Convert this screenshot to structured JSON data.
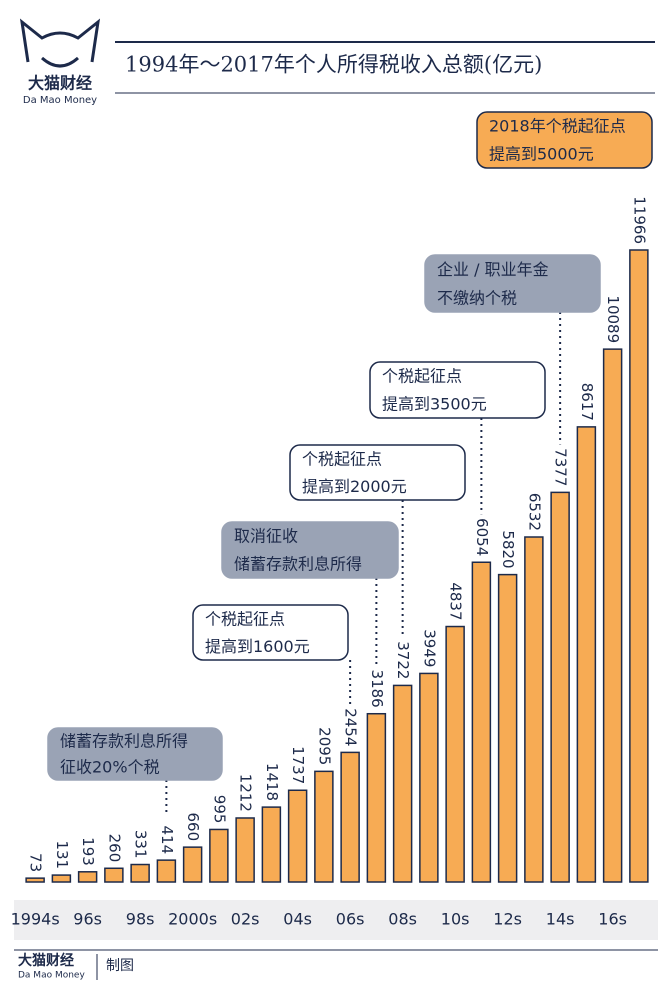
{
  "brand": {
    "name": "大猫财经",
    "sub": "Da Mao Money"
  },
  "footer": {
    "name": "大猫财经",
    "sub": "Da Mao Money",
    "note": "制图"
  },
  "chart_data": {
    "type": "bar",
    "title": "1994年～2017年个人所得税收入总额(亿元)",
    "color": "#f7ab54",
    "categories": [
      "1994s",
      null,
      "96s",
      null,
      "98s",
      null,
      "2000s",
      null,
      "02s",
      null,
      "04s",
      null,
      "06s",
      null,
      "08s",
      null,
      "10s",
      null,
      "12s",
      null,
      "14s",
      null,
      "16s",
      null
    ],
    "values": [
      73,
      131,
      193,
      260,
      331,
      414,
      660,
      995,
      1212,
      1418,
      1737,
      2095,
      2454,
      3186,
      3722,
      3949,
      4837,
      6054,
      5820,
      6532,
      7377,
      8617,
      10089,
      11966
    ],
    "annotations": [
      {
        "lines": [
          "储蓄存款利息所得",
          "征收20%个税"
        ]
      },
      {
        "lines": [
          "个税起征点",
          "提高到1600元"
        ]
      },
      {
        "lines": [
          "取消征收",
          "储蓄存款利息所得"
        ]
      },
      {
        "lines": [
          "个税起征点",
          "提高到2000元"
        ]
      },
      {
        "lines": [
          "个税起征点",
          "提高到3500元"
        ]
      },
      {
        "lines": [
          "企业 / 职业年金",
          "不缴纳个税"
        ]
      },
      {
        "lines": [
          "2018年个税起征点",
          "提高到5000元"
        ]
      }
    ]
  }
}
